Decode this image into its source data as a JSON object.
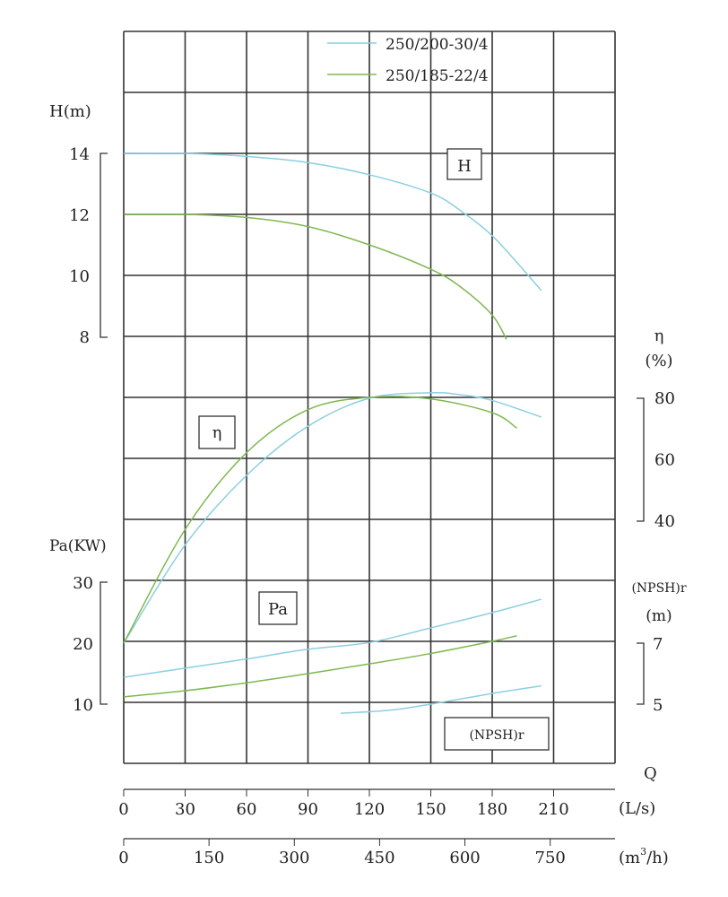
{
  "chart_data": {
    "type": "line",
    "title": "",
    "legend": {
      "placement": "top-right",
      "entries": [
        "250/200-30/4",
        "250/185-22/4"
      ]
    },
    "colors": {
      "250/200-30/4": "#8ccfe0",
      "250/185-22/4": "#7fb850",
      "grid": "#333333"
    },
    "x_axis": {
      "label": "Q",
      "primary": {
        "unit": "(L/s)",
        "ticks": [
          "0",
          "30",
          "60",
          "90",
          "120",
          "150",
          "180",
          "210"
        ],
        "range": [
          0,
          240
        ]
      },
      "secondary": {
        "unit_base": "(m",
        "unit_sup": "3",
        "unit_tail": "/h)",
        "ticks": [
          "0",
          "150",
          "300",
          "450",
          "600",
          "750"
        ]
      }
    },
    "axes": {
      "H": {
        "label": "H(m)",
        "ticks": [
          "14",
          "12",
          "10",
          "8"
        ],
        "box_label": "H"
      },
      "eta": {
        "label_top": "η",
        "label_unit": "(%)",
        "ticks": [
          "80",
          "60",
          "40"
        ],
        "box_label": "η"
      },
      "Pa": {
        "label": "Pa(KW)",
        "ticks": [
          "30",
          "20",
          "10"
        ],
        "box_label": "Pa"
      },
      "NPSH": {
        "label": "(NPSH)r",
        "label_unit": "(m)",
        "ticks": [
          "7",
          "5"
        ],
        "box_label": "(NPSH)r"
      }
    },
    "series": [
      {
        "name": "250/200-30/4",
        "quantity": "H",
        "x": [
          0,
          30,
          60,
          90,
          120,
          150,
          165,
          180,
          195,
          204
        ],
        "y": [
          14.0,
          14.0,
          13.9,
          13.7,
          13.3,
          12.7,
          12.1,
          11.3,
          10.2,
          9.5
        ]
      },
      {
        "name": "250/185-22/4",
        "quantity": "H",
        "x": [
          0,
          30,
          60,
          90,
          120,
          150,
          165,
          180,
          187
        ],
        "y": [
          12.0,
          12.0,
          11.9,
          11.6,
          11.0,
          10.2,
          9.6,
          8.7,
          7.9
        ]
      },
      {
        "name": "250/200-30/4",
        "quantity": "eta",
        "x": [
          0,
          30,
          60,
          90,
          120,
          150,
          165,
          180,
          204
        ],
        "y": [
          0,
          32,
          54.6,
          70.6,
          79.7,
          81.5,
          80.8,
          79,
          73.6
        ]
      },
      {
        "name": "250/185-22/4",
        "quantity": "eta",
        "x": [
          0,
          30,
          60,
          90,
          120,
          150,
          180,
          192
        ],
        "y": [
          0,
          37,
          62,
          76,
          80,
          79.5,
          75,
          70
        ]
      },
      {
        "name": "250/200-30/4",
        "quantity": "Pa",
        "x": [
          0,
          30,
          60,
          90,
          120,
          150,
          180,
          204
        ],
        "y": [
          14.4,
          15.9,
          17.4,
          19,
          20.1,
          22.5,
          25,
          27.2
        ]
      },
      {
        "name": "250/185-22/4",
        "quantity": "Pa",
        "x": [
          0,
          30,
          60,
          90,
          120,
          150,
          180,
          192
        ],
        "y": [
          11.2,
          12.2,
          13.5,
          15,
          16.6,
          18.3,
          20.3,
          21.2
        ]
      },
      {
        "name": "250/200-30/4",
        "quantity": "NPSH",
        "x": [
          106,
          130,
          150,
          180,
          204
        ],
        "y": [
          4.7,
          4.8,
          5.0,
          5.35,
          5.6
        ]
      }
    ]
  }
}
